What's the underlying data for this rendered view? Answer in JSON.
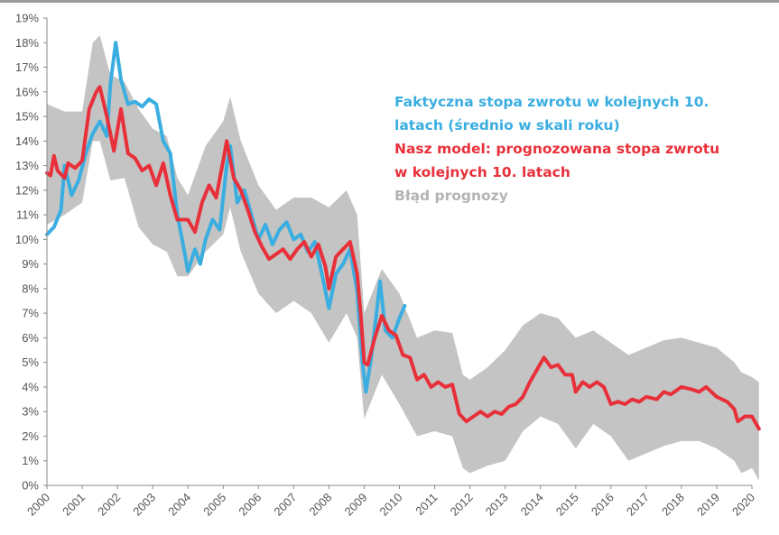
{
  "chart_data": {
    "type": "line",
    "title": "",
    "xlabel": "",
    "ylabel": "",
    "xlim": [
      2000,
      2020
    ],
    "ylim": [
      0,
      19
    ],
    "y_ticks": [
      "0%",
      "1%",
      "2%",
      "3%",
      "4%",
      "5%",
      "6%",
      "7%",
      "8%",
      "9%",
      "10%",
      "11%",
      "12%",
      "13%",
      "14%",
      "15%",
      "16%",
      "17%",
      "18%",
      "19%"
    ],
    "x_ticks": [
      "2000",
      "2001",
      "2002",
      "2003",
      "2004",
      "2005",
      "2006",
      "2007",
      "2008",
      "2009",
      "2010",
      "2011",
      "2012",
      "2013",
      "2014",
      "2015",
      "2016",
      "2017",
      "2018",
      "2019",
      "2020"
    ],
    "grid": false,
    "legend_position": "top-right",
    "colors": {
      "actual": "#3aaee0",
      "model": "#e8303a",
      "band": "#c4c4c4",
      "band_label": "#b3b3b3",
      "axis": "#8a8a8a",
      "tick_text": "#555555"
    },
    "legend": {
      "actual": [
        "Faktyczna stopa zwrotu w kolejnych 10.",
        "latach (średnio w skali roku)"
      ],
      "model": [
        "Nasz model: prognozowana stopa zwrotu",
        "w kolejnych 10. latach"
      ],
      "band": "Błąd prognozy"
    },
    "series": [
      {
        "name": "Faktyczna stopa zwrotu w kolejnych 10. latach (średnio w skali roku)",
        "key": "actual",
        "x": [
          2000.0,
          2000.2,
          2000.4,
          2000.5,
          2000.7,
          2000.9,
          2001.1,
          2001.3,
          2001.5,
          2001.7,
          2001.8,
          2001.95,
          2002.1,
          2002.3,
          2002.5,
          2002.7,
          2002.9,
          2003.1,
          2003.3,
          2003.5,
          2003.7,
          2003.9,
          2004.0,
          2004.2,
          2004.35,
          2004.5,
          2004.7,
          2004.9,
          2005.1,
          2005.2,
          2005.4,
          2005.6,
          2005.8,
          2006.0,
          2006.2,
          2006.4,
          2006.6,
          2006.8,
          2007.0,
          2007.2,
          2007.4,
          2007.6,
          2007.8,
          2008.0,
          2008.2,
          2008.4,
          2008.6,
          2008.8,
          2008.95,
          2009.05,
          2009.2,
          2009.35,
          2009.45,
          2009.6,
          2009.8,
          2010.0,
          2010.15
        ],
        "y": [
          10.2,
          10.5,
          11.2,
          13.0,
          11.8,
          12.4,
          13.5,
          14.3,
          14.8,
          14.2,
          16.3,
          18.0,
          16.5,
          15.5,
          15.6,
          15.4,
          15.7,
          15.5,
          14.0,
          13.5,
          11.0,
          9.5,
          8.7,
          9.6,
          9.0,
          10.0,
          10.8,
          10.4,
          13.0,
          13.8,
          11.5,
          12.0,
          11.0,
          10.0,
          10.6,
          9.8,
          10.4,
          10.7,
          10.0,
          10.2,
          9.5,
          9.9,
          8.6,
          7.2,
          8.6,
          9.0,
          9.6,
          7.9,
          5.0,
          3.8,
          5.2,
          7.0,
          8.3,
          6.3,
          6.0,
          6.8,
          7.3
        ]
      },
      {
        "name": "Nasz model: prognozowana stopa zwrotu w kolejnych 10. latach",
        "key": "model",
        "x": [
          2000.0,
          2000.1,
          2000.2,
          2000.3,
          2000.5,
          2000.6,
          2000.8,
          2001.0,
          2001.2,
          2001.4,
          2001.5,
          2001.7,
          2001.9,
          2002.1,
          2002.3,
          2002.5,
          2002.7,
          2002.9,
          2003.1,
          2003.3,
          2003.5,
          2003.7,
          2004.0,
          2004.2,
          2004.4,
          2004.6,
          2004.8,
          2005.0,
          2005.1,
          2005.3,
          2005.5,
          2005.7,
          2005.9,
          2006.1,
          2006.3,
          2006.5,
          2006.7,
          2006.9,
          2007.1,
          2007.3,
          2007.5,
          2007.7,
          2007.9,
          2008.0,
          2008.2,
          2008.4,
          2008.6,
          2008.8,
          2008.9,
          2009.0,
          2009.1,
          2009.3,
          2009.5,
          2009.7,
          2009.9,
          2010.1,
          2010.3,
          2010.5,
          2010.7,
          2010.9,
          2011.1,
          2011.3,
          2011.5,
          2011.7,
          2011.9,
          2012.1,
          2012.3,
          2012.5,
          2012.7,
          2012.9,
          2013.1,
          2013.3,
          2013.5,
          2013.7,
          2013.9,
          2014.1,
          2014.3,
          2014.5,
          2014.7,
          2014.9,
          2015.0,
          2015.2,
          2015.4,
          2015.6,
          2015.8,
          2016.0,
          2016.2,
          2016.4,
          2016.6,
          2016.8,
          2017.0,
          2017.3,
          2017.5,
          2017.7,
          2018.0,
          2018.3,
          2018.5,
          2018.7,
          2019.0,
          2019.3,
          2019.5,
          2019.6,
          2019.8,
          2020.0,
          2020.2
        ],
        "y": [
          12.7,
          12.6,
          13.4,
          12.8,
          12.5,
          13.1,
          12.9,
          13.2,
          15.3,
          16.0,
          16.2,
          15.0,
          13.6,
          15.3,
          13.5,
          13.3,
          12.8,
          13.0,
          12.2,
          13.1,
          11.8,
          10.8,
          10.8,
          10.3,
          11.5,
          12.2,
          11.7,
          13.2,
          14.0,
          12.5,
          12.0,
          11.2,
          10.3,
          9.7,
          9.2,
          9.4,
          9.6,
          9.2,
          9.6,
          9.9,
          9.3,
          9.8,
          8.9,
          8.0,
          9.3,
          9.6,
          9.9,
          8.6,
          7.0,
          5.0,
          4.9,
          6.0,
          6.9,
          6.3,
          6.1,
          5.3,
          5.2,
          4.3,
          4.5,
          4.0,
          4.2,
          4.0,
          4.1,
          2.9,
          2.6,
          2.8,
          3.0,
          2.8,
          3.0,
          2.9,
          3.2,
          3.3,
          3.6,
          4.2,
          4.7,
          5.2,
          4.8,
          4.9,
          4.5,
          4.5,
          3.8,
          4.2,
          4.0,
          4.2,
          4.0,
          3.3,
          3.4,
          3.3,
          3.5,
          3.4,
          3.6,
          3.5,
          3.8,
          3.7,
          4.0,
          3.9,
          3.8,
          4.0,
          3.6,
          3.4,
          3.1,
          2.6,
          2.8,
          2.8,
          2.3
        ]
      },
      {
        "name": "Błąd prognozy",
        "key": "band",
        "type": "area-band",
        "x": [
          2000,
          2000.5,
          2001,
          2001.3,
          2001.5,
          2001.8,
          2002.2,
          2002.6,
          2003.0,
          2003.4,
          2003.7,
          2004.0,
          2004.5,
          2005.0,
          2005.2,
          2005.5,
          2006.0,
          2006.5,
          2007.0,
          2007.5,
          2008.0,
          2008.5,
          2008.8,
          2009.0,
          2009.5,
          2010.0,
          2010.5,
          2011.0,
          2011.5,
          2011.8,
          2012.0,
          2012.5,
          2013.0,
          2013.5,
          2014.0,
          2014.5,
          2015.0,
          2015.5,
          2016.0,
          2016.5,
          2017.0,
          2017.5,
          2018.0,
          2018.5,
          2019.0,
          2019.5,
          2019.7,
          2020.0,
          2020.2
        ],
        "low": [
          10.6,
          11.0,
          11.5,
          14.0,
          14.0,
          12.4,
          12.5,
          10.5,
          9.8,
          9.5,
          8.5,
          8.5,
          9.5,
          10.2,
          11.3,
          9.5,
          7.8,
          7.0,
          7.5,
          7.0,
          5.8,
          7.0,
          6.0,
          2.7,
          4.5,
          3.3,
          2.0,
          2.2,
          2.0,
          0.7,
          0.5,
          0.8,
          1.0,
          2.2,
          2.8,
          2.5,
          1.5,
          2.5,
          2.0,
          1.0,
          1.3,
          1.6,
          1.8,
          1.8,
          1.5,
          1.0,
          0.5,
          0.7,
          0.2
        ],
        "high": [
          15.5,
          15.2,
          15.2,
          18.0,
          18.3,
          16.7,
          16.4,
          15.3,
          14.5,
          14.2,
          12.5,
          11.8,
          13.8,
          14.8,
          15.8,
          14.0,
          12.2,
          11.2,
          11.7,
          11.7,
          11.3,
          12.0,
          11.0,
          7.0,
          8.8,
          7.8,
          6.0,
          6.3,
          6.2,
          4.5,
          4.3,
          4.8,
          5.5,
          6.5,
          7.0,
          6.8,
          6.0,
          6.3,
          5.8,
          5.3,
          5.6,
          5.9,
          6.0,
          5.8,
          5.6,
          5.0,
          4.6,
          4.4,
          4.2
        ]
      }
    ]
  }
}
